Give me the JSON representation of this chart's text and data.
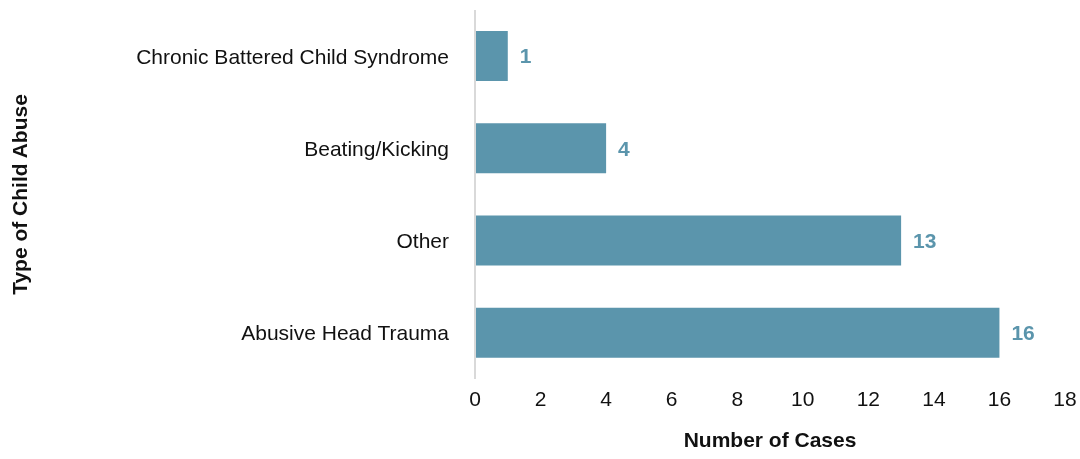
{
  "chart_data": {
    "type": "bar",
    "orientation": "horizontal",
    "xlabel": "Number of Cases",
    "ylabel": "Type of Child Abuse",
    "categories": [
      "Chronic Battered Child Syndrome",
      "Beating/Kicking",
      "Other",
      "Abusive Head Trauma"
    ],
    "values": [
      1,
      4,
      13,
      16
    ],
    "color": "#5b95ac",
    "data_labels": true,
    "grid": false,
    "legend": false,
    "xlim": [
      0,
      18
    ],
    "xticks": [
      0,
      2,
      4,
      6,
      8,
      10,
      12,
      14,
      16,
      18
    ]
  }
}
